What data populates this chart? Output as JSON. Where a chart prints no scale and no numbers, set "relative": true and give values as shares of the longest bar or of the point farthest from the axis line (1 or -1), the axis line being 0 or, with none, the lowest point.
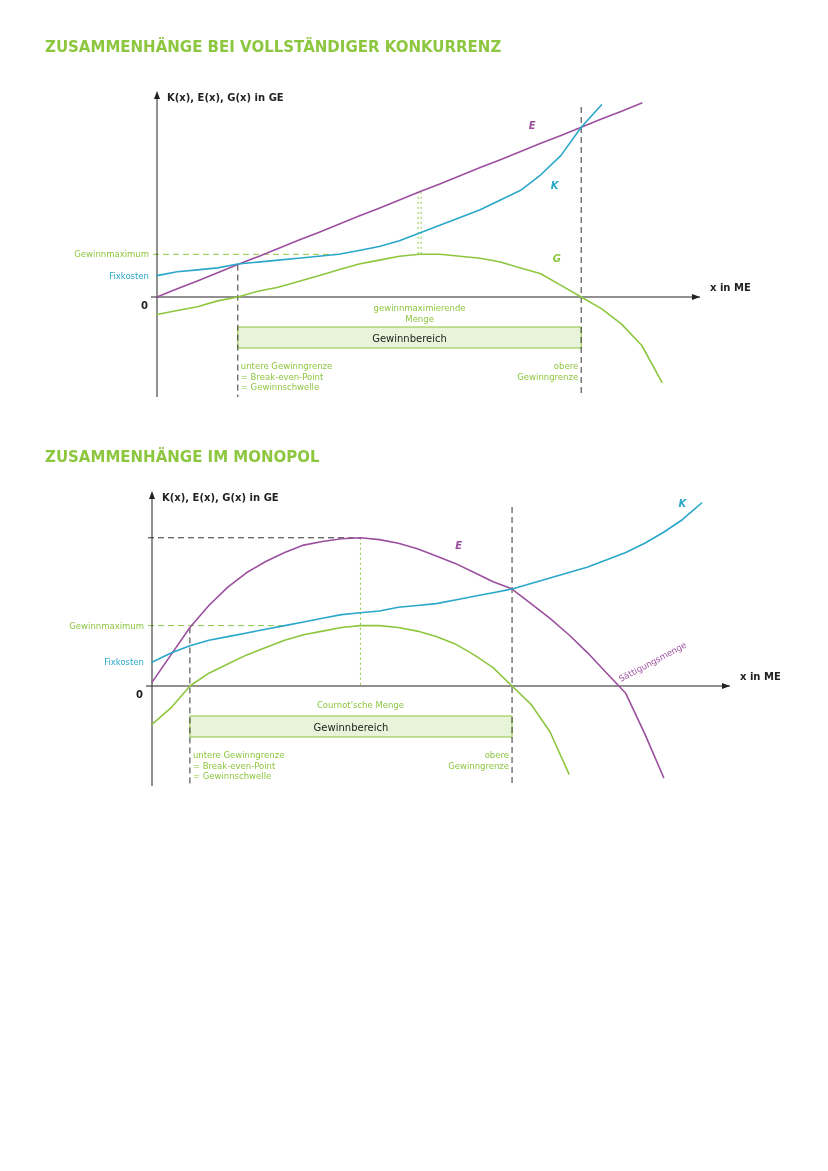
{
  "chart_data": [
    {
      "type": "line",
      "title": "ZUSAMMENHÄNGE BEI VOLLSTÄNDIGER KONKURRENZ",
      "xlabel": "x in ME",
      "ylabel": "K(x), E(x), G(x) in GE",
      "relative": true,
      "legend": false,
      "grid": false,
      "marker": "none",
      "line_style": "solid",
      "categories": [
        null,
        null,
        null,
        null,
        null,
        null,
        null,
        null,
        null,
        null,
        null,
        null,
        null,
        null,
        null,
        null,
        null,
        null,
        null,
        null,
        null,
        null,
        null,
        null,
        null,
        null
      ],
      "series": [
        {
          "name": "E",
          "color": "#9b4f9e",
          "values": [
            0,
            0.042,
            0.083,
            0.125,
            0.167,
            0.208,
            0.25,
            0.292,
            0.333,
            0.375,
            0.417,
            0.458,
            0.5,
            0.542,
            0.583,
            0.625,
            0.667,
            0.708,
            0.75,
            0.792,
            0.833,
            0.875,
            0.917,
            0.958,
            1.0,
            null
          ]
        },
        {
          "name": "K",
          "color": "#2aa7c9",
          "values": [
            0.11,
            0.13,
            0.14,
            0.15,
            0.17,
            0.18,
            0.19,
            0.2,
            0.21,
            0.22,
            0.24,
            0.26,
            0.29,
            0.33,
            0.37,
            0.41,
            0.45,
            0.5,
            0.55,
            0.63,
            0.73,
            0.875,
            0.99,
            null,
            null,
            null
          ]
        },
        {
          "name": "G",
          "color": "#8dc63f",
          "values": [
            -0.09,
            -0.07,
            -0.05,
            -0.02,
            0,
            0.03,
            0.05,
            0.08,
            0.11,
            0.14,
            0.17,
            0.19,
            0.21,
            0.22,
            0.22,
            0.21,
            0.2,
            0.18,
            0.15,
            0.12,
            0.06,
            0,
            -0.06,
            -0.14,
            -0.25,
            -0.44
          ]
        }
      ],
      "ref_lines": [
        {
          "axis": "y",
          "value": 0.22,
          "label": "Gewinnmaximum",
          "color": "#8dc63f",
          "line_style": "dashed"
        }
      ],
      "annotations": [
        "0",
        "Fixkosten",
        "gewinnmaximierende\nMenge",
        "untere Gewinngrenze\n= Break-even-Point\n= Gewinnschwelle",
        "obere\nGewinngrenze",
        "Gewinnbereich"
      ]
    },
    {
      "type": "line",
      "title": "ZUSAMMENHÄNGE IM MONOPOL",
      "xlabel": "x in ME",
      "ylabel": "K(x), E(x), G(x) in GE",
      "relative": true,
      "legend": false,
      "grid": false,
      "marker": "none",
      "line_style": "solid",
      "categories": [
        null,
        null,
        null,
        null,
        null,
        null,
        null,
        null,
        null,
        null,
        null,
        null,
        null,
        null,
        null,
        null,
        null,
        null,
        null,
        null,
        null,
        null,
        null,
        null,
        null,
        null,
        null,
        null,
        null,
        null
      ],
      "series": [
        {
          "name": "E",
          "color": "#9b4f9e",
          "values": [
            0.02,
            0.17,
            0.32,
            0.44,
            0.54,
            0.62,
            0.68,
            0.73,
            0.77,
            0.79,
            0.805,
            0.81,
            0.8,
            0.78,
            0.75,
            0.71,
            0.67,
            0.62,
            0.57,
            0.53,
            0.45,
            0.37,
            0.28,
            0.18,
            0.07,
            -0.04,
            -0.26,
            -0.5,
            null,
            null
          ]
        },
        {
          "name": "K",
          "color": "#2aa7c9",
          "values": [
            0.13,
            0.18,
            0.22,
            0.25,
            0.27,
            0.29,
            0.31,
            0.33,
            0.35,
            0.37,
            0.39,
            0.4,
            0.41,
            0.43,
            0.44,
            0.45,
            0.47,
            0.49,
            0.51,
            0.53,
            0.56,
            0.59,
            0.62,
            0.65,
            0.69,
            0.73,
            0.78,
            0.84,
            0.91,
            1.0
          ]
        },
        {
          "color": "#8dc63f",
          "values": [
            -0.21,
            -0.12,
            0,
            0.07,
            0.12,
            0.17,
            0.21,
            0.25,
            0.28,
            0.3,
            0.32,
            0.33,
            0.33,
            0.32,
            0.3,
            0.27,
            0.23,
            0.17,
            0.1,
            0,
            -0.1,
            -0.25,
            -0.48,
            null,
            null,
            null,
            null,
            null,
            null,
            null
          ]
        }
      ],
      "ref_lines": [
        {
          "axis": "y",
          "value": 0.81,
          "color": "#333333",
          "line_style": "dashed"
        },
        {
          "axis": "y",
          "value": 0.33,
          "label": "Gewinnmaximum",
          "color": "#8dc63f",
          "line_style": "dashed"
        }
      ],
      "annotations": [
        "0",
        "Fixkosten",
        "Cournot'sche Menge",
        "untere Gewinngrenze\n= Break-even-Point\n= Gewinnschwelle",
        "obere\nGewinngrenze",
        "Sättigungsmenge",
        "Gewinnbereich"
      ]
    }
  ]
}
